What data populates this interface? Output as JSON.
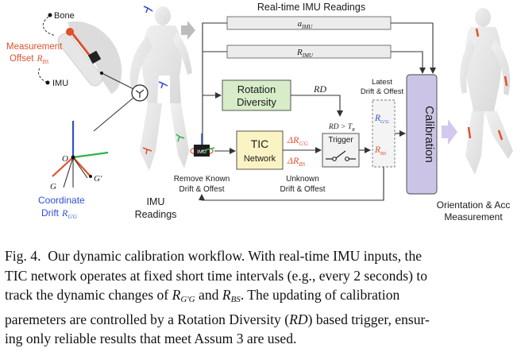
{
  "left_panel": {
    "bone_label": "Bone",
    "offset_label_line1": "Measurement",
    "offset_label_line2": "Offset",
    "offset_symbol": "R",
    "offset_symbol_sub": "BS",
    "imu_label": "IMU",
    "coord_O": "O",
    "coord_G": "G",
    "coord_Gp": "G'",
    "coord_drift_line1": "Coordinate",
    "coord_drift_line2": "Drift",
    "coord_drift_symbol": "R",
    "coord_drift_sub": "G'G",
    "imu_readings_line1": "IMU",
    "imu_readings_line2": "Readings"
  },
  "pipeline": {
    "realtime_title": "Real-time IMU Readings",
    "a_imu": "a",
    "a_imu_sub": "IMU",
    "r_imu": "R",
    "r_imu_sub": "IMU",
    "rotation_diversity_line1": "Rotation",
    "rotation_diversity_line2": "Diversity",
    "rd_label": "RD",
    "rd_threshold": "RD > T",
    "rd_threshold_sub": "R",
    "trigger_label": "Trigger",
    "tic_line1": "TIC",
    "tic_line2": "Network",
    "delta_rgg": "ΔR",
    "delta_rgg_sub": "G'G",
    "delta_rbs": "ΔR",
    "delta_rbs_sub": "BS",
    "latest_line1": "Latest",
    "latest_line2": "Drift & Offest",
    "latest_rgg": "R",
    "latest_rgg_sub": "G'G",
    "latest_rbs": "R",
    "latest_rbs_sub": "BS",
    "remove_known_line1": "Remove Known",
    "remove_known_line2": "Drift & Offest",
    "unknown_line1": "Unknown",
    "unknown_line2": "Drift & Offest",
    "imu_chip": "IMU",
    "calibration_label": "Calibration",
    "output_line1": "Orientation & Acc",
    "output_line2": "Measurement"
  },
  "caption": {
    "fig_label": "Fig. 4.",
    "line1": "Our dynamic calibration workflow. With real-time IMU inputs, the",
    "line2": "TIC network operates at fixed short time intervals (e.g., every 2 seconds) to",
    "line3_pre": "track the dynamic changes of",
    "line3_mid": "and",
    "line3_post": ". The updating of calibration",
    "line4_pre": "paremeters are controlled by a Rotation Diversity (",
    "line4_rd": "RD",
    "line4_post": ") based trigger, ensur-",
    "line5": "ing only reliable results that meet Assum 3 are used.",
    "sym_R": "R",
    "sym_GpG": "G′G",
    "sym_BS": "BS"
  },
  "colors": {
    "tic_fill": "#fbf3c4",
    "rotation_fill": "#d7ecc8",
    "calibration_fill": "#ccc4e6",
    "accent_red": "#e0502c",
    "accent_blue": "#2e4fd4",
    "arrow_purple": "#d3c8ee"
  }
}
